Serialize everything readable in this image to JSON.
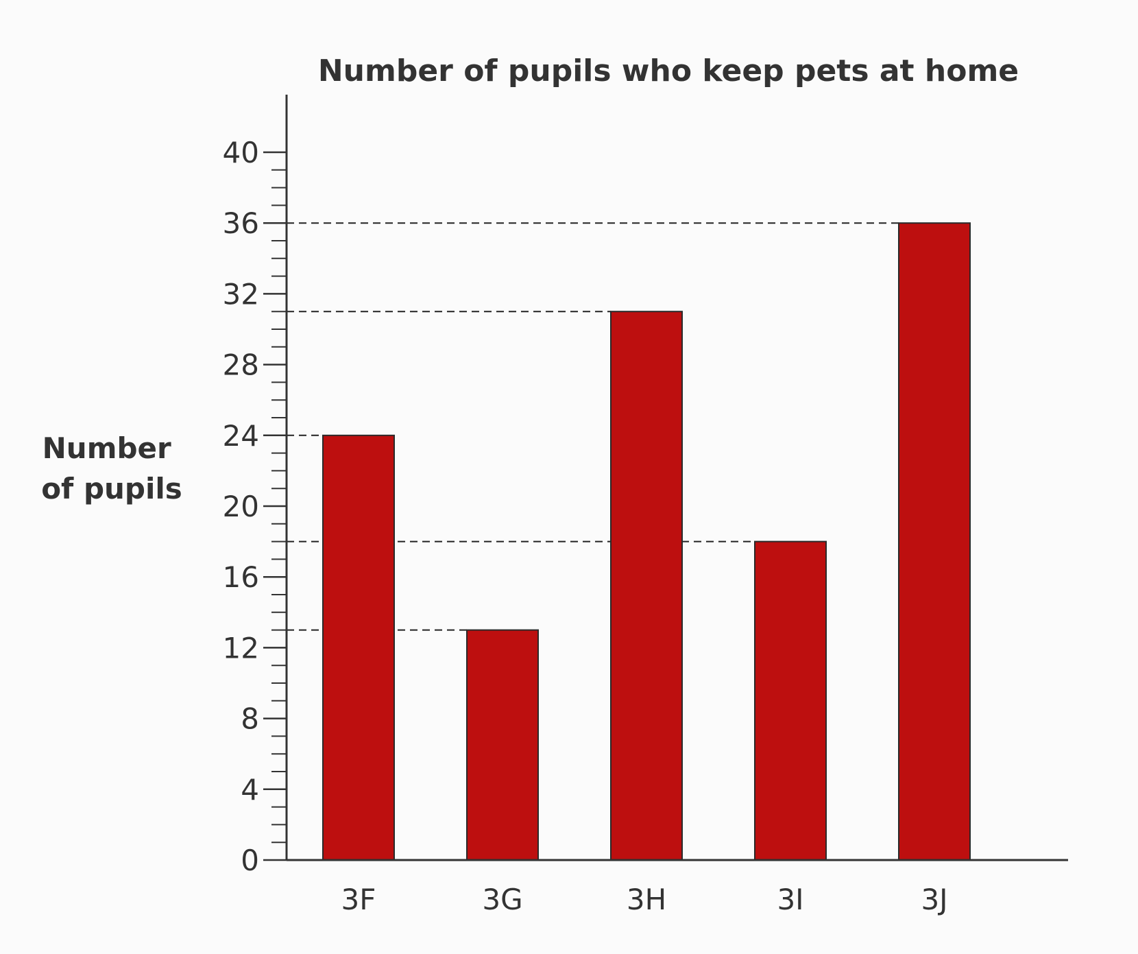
{
  "chart_data": {
    "type": "bar",
    "title": "Number of pupils who keep pets at home",
    "ylabel_lines": [
      "Number",
      "of pupils"
    ],
    "xlabel": "",
    "categories": [
      "3F",
      "3G",
      "3H",
      "3I",
      "3J"
    ],
    "values": [
      24,
      13,
      31,
      18,
      36
    ],
    "ylim": [
      0,
      40
    ],
    "yticks": [
      "0",
      "4",
      "8",
      "12",
      "16",
      "20",
      "24",
      "28",
      "32",
      "36",
      "40"
    ],
    "minor_tick_step": 1,
    "grid": false,
    "reference_lines": "dashed lines from y-axis to each bar top",
    "bar_color": "#bd0f0f",
    "legend": "none"
  }
}
